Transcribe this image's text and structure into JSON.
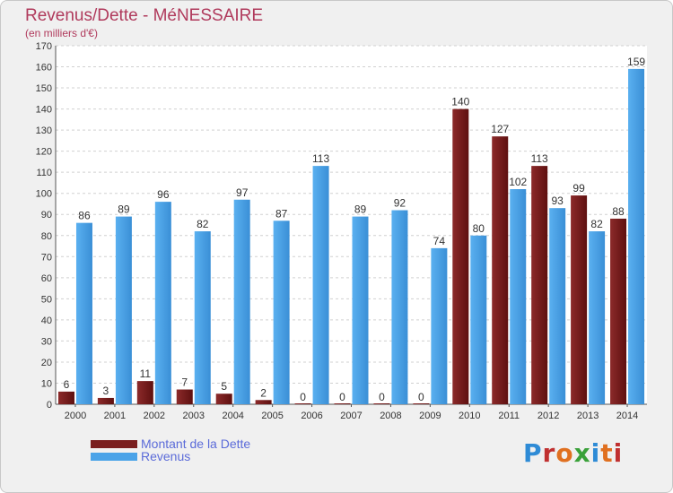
{
  "chart_data": {
    "type": "bar",
    "title": "Revenus/Dette - MéNESSAIRE",
    "subtitle": "(en milliers d'€)",
    "categories": [
      "2000",
      "2001",
      "2002",
      "2003",
      "2004",
      "2005",
      "2006",
      "2007",
      "2008",
      "2009",
      "2010",
      "2011",
      "2012",
      "2013",
      "2014"
    ],
    "series": [
      {
        "name": "Montant de la Dette",
        "color": "#7a1f1f",
        "values": [
          6,
          3,
          11,
          7,
          5,
          2,
          0,
          0,
          0,
          0,
          140,
          127,
          113,
          99,
          88
        ]
      },
      {
        "name": "Revenus",
        "color": "#4aa3e8",
        "values": [
          86,
          89,
          96,
          82,
          97,
          87,
          113,
          89,
          92,
          74,
          80,
          102,
          93,
          82,
          159
        ]
      }
    ],
    "ylim": [
      0,
      170
    ],
    "yticks": [
      0,
      10,
      20,
      30,
      40,
      50,
      60,
      70,
      80,
      90,
      100,
      110,
      120,
      130,
      140,
      150,
      160,
      170
    ],
    "grid": true,
    "legend": "bottom-left"
  },
  "logo": {
    "text": "Proxiti"
  }
}
